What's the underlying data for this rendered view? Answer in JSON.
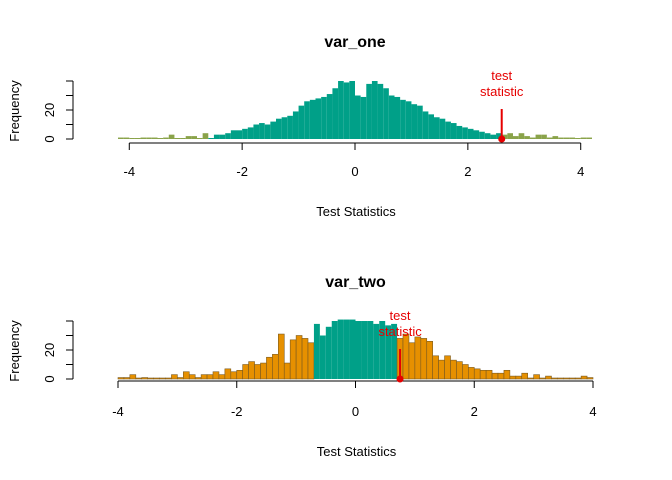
{
  "colors": {
    "teal": "#00A088",
    "orange": "#E69000",
    "red": "#E60000"
  },
  "chart_data": [
    {
      "type": "bar",
      "title": "var_one",
      "xlabel": "Test Statistics",
      "ylabel": "Frequency",
      "xlim": [
        -4.2,
        4.2
      ],
      "ylim": [
        0,
        40
      ],
      "x_ticks": [
        -4,
        -2,
        0,
        2,
        4
      ],
      "y_ticks": [
        0,
        20
      ],
      "bin_width": 0.1,
      "annotation": "test\nstatistic",
      "test_statistic": 2.6,
      "highlight_threshold": 2.6,
      "bins": [
        [
          -4.2,
          1
        ],
        [
          -4.1,
          1
        ],
        [
          -4.0,
          0
        ],
        [
          -3.9,
          0
        ],
        [
          -3.8,
          1
        ],
        [
          -3.7,
          1
        ],
        [
          -3.6,
          1
        ],
        [
          -3.5,
          0
        ],
        [
          -3.4,
          1
        ],
        [
          -3.3,
          3
        ],
        [
          -3.2,
          0
        ],
        [
          -3.1,
          0
        ],
        [
          -3.0,
          2
        ],
        [
          -2.9,
          2
        ],
        [
          -2.8,
          0
        ],
        [
          -2.7,
          4
        ],
        [
          -2.6,
          0
        ],
        [
          -2.5,
          3
        ],
        [
          -2.4,
          3
        ],
        [
          -2.3,
          4
        ],
        [
          -2.2,
          6
        ],
        [
          -2.1,
          6
        ],
        [
          -2.0,
          7
        ],
        [
          -1.9,
          8
        ],
        [
          -1.8,
          10
        ],
        [
          -1.7,
          11
        ],
        [
          -1.6,
          10
        ],
        [
          -1.5,
          12
        ],
        [
          -1.4,
          14
        ],
        [
          -1.3,
          15
        ],
        [
          -1.2,
          16
        ],
        [
          -1.1,
          19
        ],
        [
          -1.0,
          23
        ],
        [
          -0.9,
          26
        ],
        [
          -0.8,
          27
        ],
        [
          -0.7,
          28
        ],
        [
          -0.6,
          29
        ],
        [
          -0.5,
          31
        ],
        [
          -0.4,
          35
        ],
        [
          -0.3,
          40
        ],
        [
          -0.2,
          39
        ],
        [
          -0.1,
          40
        ],
        [
          0.0,
          30
        ],
        [
          0.1,
          29
        ],
        [
          0.2,
          38
        ],
        [
          0.3,
          40
        ],
        [
          0.4,
          38
        ],
        [
          0.5,
          35
        ],
        [
          0.6,
          30
        ],
        [
          0.7,
          29
        ],
        [
          0.8,
          27
        ],
        [
          0.9,
          26
        ],
        [
          1.0,
          24
        ],
        [
          1.1,
          23
        ],
        [
          1.2,
          19
        ],
        [
          1.3,
          17
        ],
        [
          1.4,
          15
        ],
        [
          1.5,
          14
        ],
        [
          1.6,
          12
        ],
        [
          1.7,
          11
        ],
        [
          1.8,
          9
        ],
        [
          1.9,
          8
        ],
        [
          2.0,
          7
        ],
        [
          2.1,
          6
        ],
        [
          2.2,
          5
        ],
        [
          2.3,
          4
        ],
        [
          2.4,
          3
        ],
        [
          2.5,
          4
        ],
        [
          2.6,
          3
        ],
        [
          2.7,
          4
        ],
        [
          2.8,
          2
        ],
        [
          2.9,
          4
        ],
        [
          3.0,
          2
        ],
        [
          3.1,
          1
        ],
        [
          3.2,
          3
        ],
        [
          3.3,
          3
        ],
        [
          3.4,
          1
        ],
        [
          3.5,
          2
        ],
        [
          3.6,
          1
        ],
        [
          3.7,
          1
        ],
        [
          3.8,
          1
        ],
        [
          3.9,
          0
        ],
        [
          4.0,
          1
        ],
        [
          4.1,
          1
        ]
      ]
    },
    {
      "type": "bar",
      "title": "var_two",
      "xlabel": "Test Statistics",
      "ylabel": "Frequency",
      "xlim": [
        -4,
        4
      ],
      "ylim": [
        0,
        40
      ],
      "x_ticks": [
        -4,
        -2,
        0,
        2,
        4
      ],
      "y_ticks": [
        0,
        20
      ],
      "bin_width": 0.1,
      "annotation": "test\nstatistic",
      "test_statistic": 0.75,
      "highlight_threshold": 0.75,
      "bins": [
        [
          -4.0,
          1
        ],
        [
          -3.9,
          1
        ],
        [
          -3.8,
          3
        ],
        [
          -3.7,
          0
        ],
        [
          -3.6,
          1
        ],
        [
          -3.5,
          0
        ],
        [
          -3.4,
          0
        ],
        [
          -3.3,
          0
        ],
        [
          -3.2,
          0
        ],
        [
          -3.1,
          3
        ],
        [
          -3.0,
          1
        ],
        [
          -2.9,
          5
        ],
        [
          -2.8,
          3
        ],
        [
          -2.7,
          1
        ],
        [
          -2.6,
          3
        ],
        [
          -2.5,
          3
        ],
        [
          -2.4,
          5
        ],
        [
          -2.3,
          3
        ],
        [
          -2.2,
          7
        ],
        [
          -2.1,
          5
        ],
        [
          -2.0,
          6
        ],
        [
          -1.9,
          10
        ],
        [
          -1.8,
          12
        ],
        [
          -1.7,
          10
        ],
        [
          -1.6,
          11
        ],
        [
          -1.5,
          15
        ],
        [
          -1.4,
          17
        ],
        [
          -1.3,
          31
        ],
        [
          -1.2,
          11
        ],
        [
          -1.1,
          27
        ],
        [
          -1.0,
          30
        ],
        [
          -0.9,
          28
        ],
        [
          -0.8,
          25
        ],
        [
          -0.7,
          38
        ],
        [
          -0.6,
          30
        ],
        [
          -0.5,
          36
        ],
        [
          -0.4,
          40
        ],
        [
          -0.3,
          41
        ],
        [
          -0.2,
          41
        ],
        [
          -0.1,
          41
        ],
        [
          0.0,
          40
        ],
        [
          0.1,
          40
        ],
        [
          0.2,
          40
        ],
        [
          0.3,
          38
        ],
        [
          0.4,
          40
        ],
        [
          0.5,
          37
        ],
        [
          0.6,
          38
        ],
        [
          0.7,
          28
        ],
        [
          0.8,
          31
        ],
        [
          0.9,
          25
        ],
        [
          1.0,
          29
        ],
        [
          1.1,
          28
        ],
        [
          1.2,
          26
        ],
        [
          1.3,
          16
        ],
        [
          1.4,
          13
        ],
        [
          1.5,
          16
        ],
        [
          1.6,
          13
        ],
        [
          1.7,
          12
        ],
        [
          1.8,
          10
        ],
        [
          1.9,
          8
        ],
        [
          2.0,
          7
        ],
        [
          2.1,
          6
        ],
        [
          2.2,
          6
        ],
        [
          2.3,
          4
        ],
        [
          2.4,
          4
        ],
        [
          2.5,
          6
        ],
        [
          2.6,
          2
        ],
        [
          2.7,
          2
        ],
        [
          2.8,
          4
        ],
        [
          2.9,
          0
        ],
        [
          3.0,
          3
        ],
        [
          3.1,
          0
        ],
        [
          3.2,
          2
        ],
        [
          3.3,
          0
        ],
        [
          3.4,
          0
        ],
        [
          3.5,
          0
        ],
        [
          3.6,
          0
        ],
        [
          3.7,
          0
        ],
        [
          3.8,
          2
        ],
        [
          3.9,
          1
        ]
      ]
    }
  ]
}
